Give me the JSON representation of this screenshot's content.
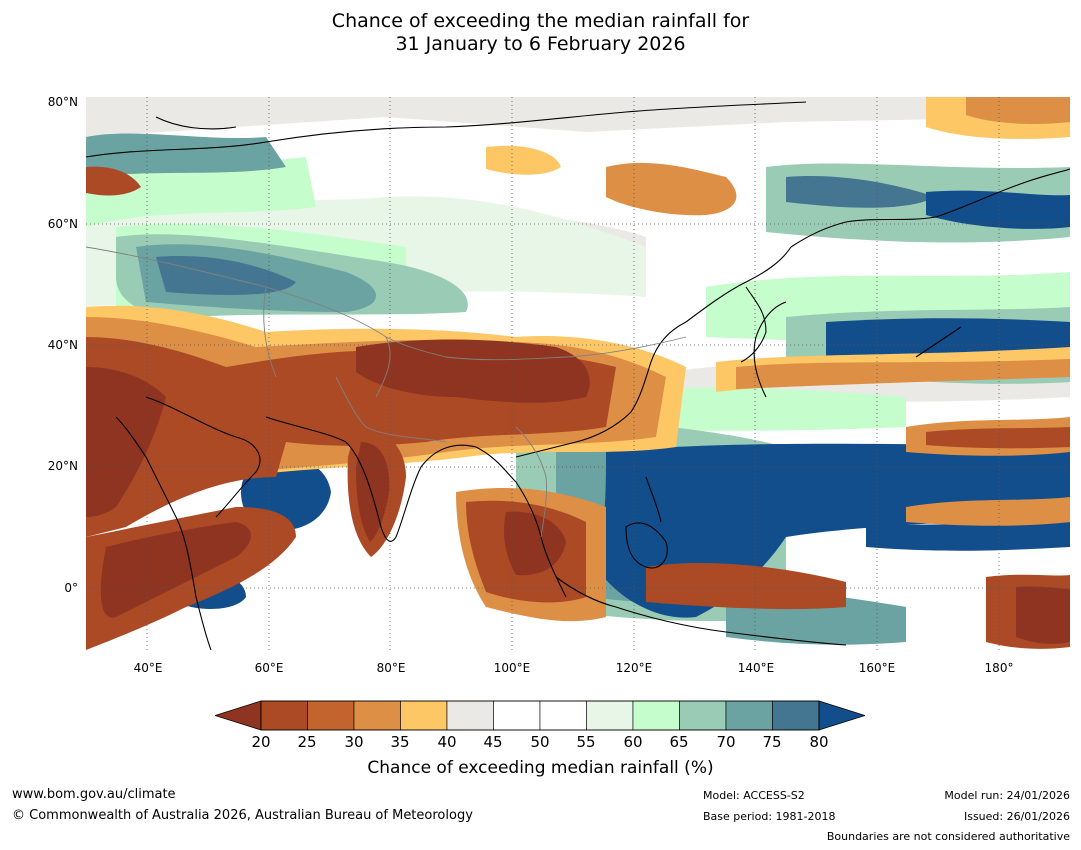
{
  "title": {
    "line1": "Chance of exceeding the median rainfall for",
    "line2": "31 January to 6 February 2026"
  },
  "map": {
    "lat_ticks": [
      "80°N",
      "60°N",
      "40°N",
      "20°N",
      "0°"
    ],
    "lon_ticks": [
      "40°E",
      "60°E",
      "80°E",
      "100°E",
      "120°E",
      "140°E",
      "160°E",
      "180°"
    ],
    "palette": {
      "c20": "#8e3420",
      "c25": "#ac4a26",
      "c30": "#c3642e",
      "c35": "#dd8f45",
      "c40": "#fdc766",
      "c45": "#ebe9e5",
      "c55": "#ffffff",
      "c60": "#e8f6e8",
      "c65": "#c5fdcd",
      "c70": "#9acbb5",
      "c75": "#6ba2a2",
      "c80": "#457691",
      "c85": "#134e8c"
    }
  },
  "colorbar": {
    "ticks": [
      "20",
      "25",
      "30",
      "35",
      "40",
      "45",
      "50",
      "55",
      "60",
      "65",
      "70",
      "75",
      "80"
    ],
    "colors": [
      "#ac4a26",
      "#c3642e",
      "#dd8f45",
      "#fdc766",
      "#ebe9e5",
      "#ffffff",
      "#ffffff",
      "#e8f6e8",
      "#c5fdcd",
      "#9acbb5",
      "#6ba2a2",
      "#457691"
    ],
    "low_color": "#8e3420",
    "high_color": "#134e8c",
    "label": "Chance of exceeding median rainfall (%)"
  },
  "footer": {
    "url": "www.bom.gov.au/climate",
    "copyright": "© Commonwealth of Australia 2026, Australian Bureau of Meteorology",
    "model": "Model: ACCESS-S2",
    "base_period": "Base period: 1981-2018",
    "model_run": "Model run: 24/01/2026",
    "issued": "Issued: 26/01/2026",
    "disclaimer": "Boundaries are not considered authoritative"
  }
}
